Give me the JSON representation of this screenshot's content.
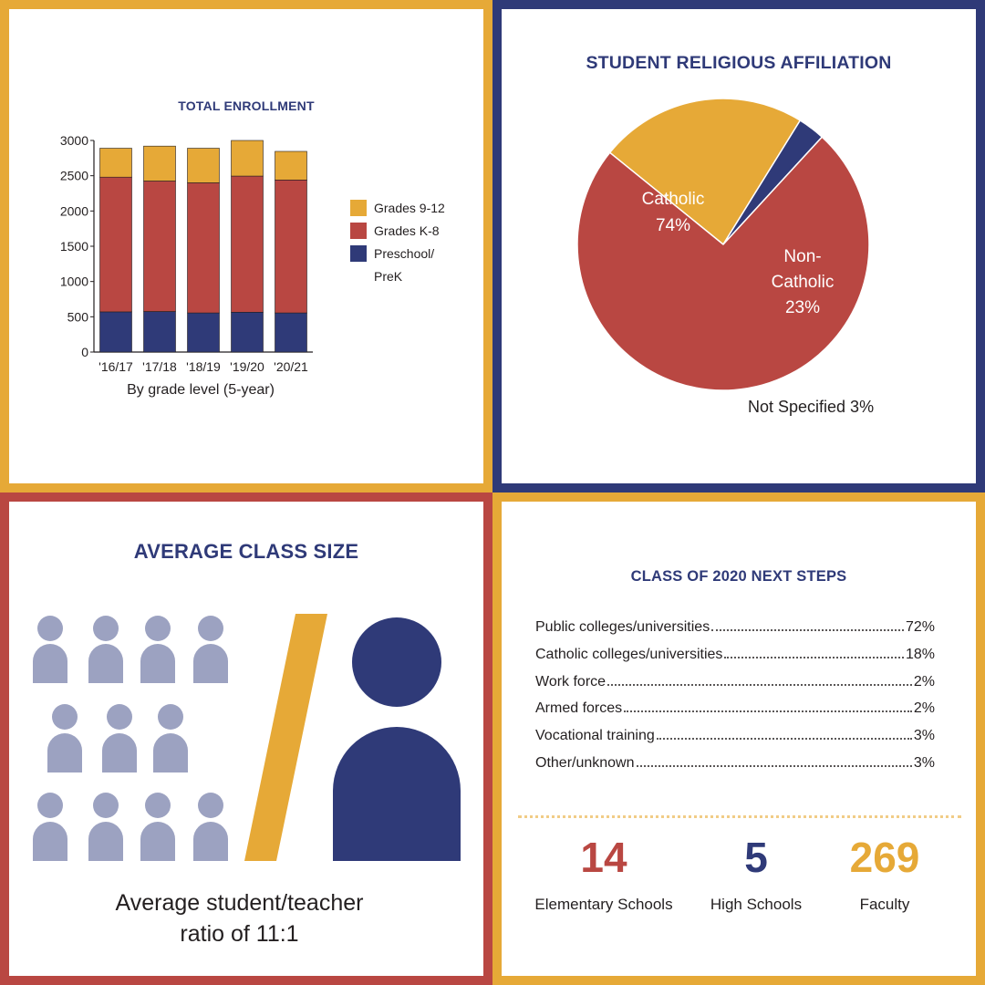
{
  "enrollment": {
    "heading": "TOTAL ENROLLMENT",
    "subtitle": "By grade level (5-year)",
    "legend": [
      {
        "label": "Grades 9-12",
        "color": "#E6A937"
      },
      {
        "label": "Grades K-8",
        "color": "#B94742"
      },
      {
        "label": "Preschool/",
        "label2": "PreK",
        "color": "#2F3A78"
      }
    ]
  },
  "religion": {
    "heading": "STUDENT RELIGIOUS AFFILIATION",
    "catholic_label": "Catholic",
    "catholic_value": "74%",
    "noncatholic_label1": "Non-",
    "noncatholic_label2": "Catholic",
    "noncatholic_value": "23%",
    "notspecified_label": "Not Specified 3%"
  },
  "class_size": {
    "heading": "AVERAGE CLASS SIZE",
    "caption_line1": "Average student/teacher",
    "caption_line2": "ratio of 11:1",
    "student_icon_count": 11,
    "teacher_icon_count": 1
  },
  "next_steps": {
    "heading": "CLASS OF 2020 NEXT STEPS",
    "rows": [
      {
        "label": "Public colleges/universities",
        "value": "72%"
      },
      {
        "label": "Catholic colleges/universities",
        "value": "18%"
      },
      {
        "label": "Work force",
        "value": "2%"
      },
      {
        "label": "Armed forces",
        "value": "2%"
      },
      {
        "label": "Vocational training",
        "value": "3%"
      },
      {
        "label": "Other/unknown",
        "value": "3%"
      }
    ],
    "stats": [
      {
        "value": "14",
        "label": "Elementary Schools",
        "color": "#B94742"
      },
      {
        "value": "5",
        "label": "High Schools",
        "color": "#2F3A78"
      },
      {
        "value": "269",
        "label": "Faculty",
        "color": "#E6A937"
      }
    ]
  },
  "chart_data": [
    {
      "type": "bar",
      "stacked": true,
      "title": "TOTAL ENROLLMENT",
      "xlabel": "By grade level (5-year)",
      "ylabel": "",
      "categories": [
        "'16/17",
        "'17/18",
        "'18/19",
        "'19/20",
        "'20/21"
      ],
      "series": [
        {
          "name": "Preschool/PreK",
          "color": "#2F3A78",
          "values": [
            570,
            575,
            555,
            565,
            555
          ]
        },
        {
          "name": "Grades K-8",
          "color": "#B94742",
          "values": [
            1910,
            1850,
            1845,
            1930,
            1885
          ]
        },
        {
          "name": "Grades 9-12",
          "color": "#E6A937",
          "values": [
            410,
            495,
            490,
            505,
            405
          ]
        }
      ],
      "ylim": [
        0,
        3000
      ],
      "yticks": [
        0,
        500,
        1000,
        1500,
        2000,
        2500,
        3000
      ],
      "grid": false,
      "legend": "right"
    },
    {
      "type": "pie",
      "title": "STUDENT RELIGIOUS AFFILIATION",
      "slices": [
        {
          "name": "Non-Catholic",
          "value": 23,
          "color": "#E6A937"
        },
        {
          "name": "Not Specified",
          "value": 3,
          "color": "#2F3A78"
        },
        {
          "name": "Catholic",
          "value": 74,
          "color": "#B94742"
        }
      ]
    }
  ]
}
